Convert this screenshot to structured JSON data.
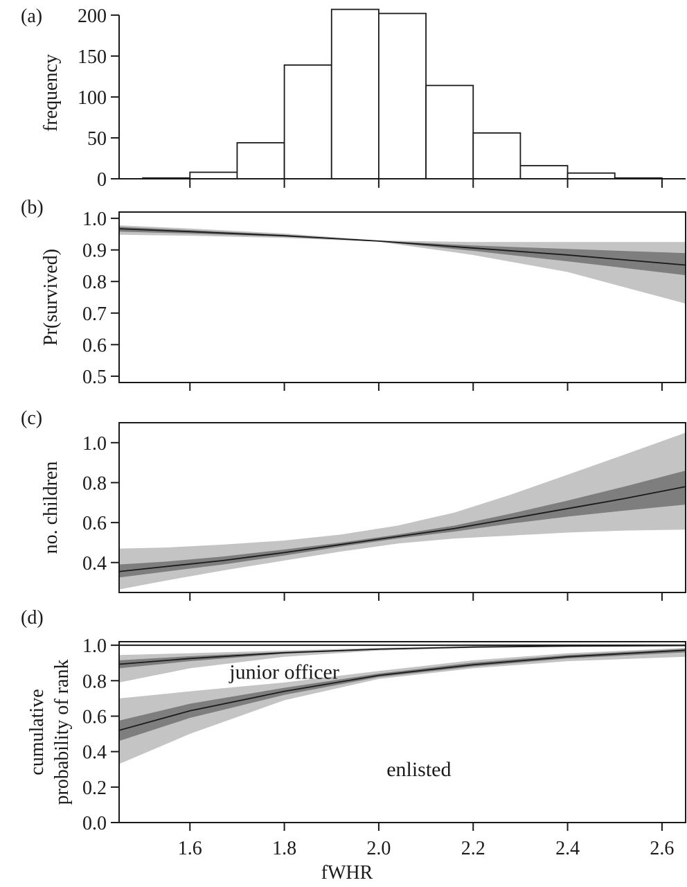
{
  "chart_data": [
    {
      "panel": "(a)",
      "type": "bar",
      "ylabel": "frequency",
      "xlabel": "",
      "xlim": [
        1.45,
        2.65
      ],
      "ylim": [
        0,
        210
      ],
      "yticks": [
        0,
        50,
        100,
        150,
        200
      ],
      "xticks": [
        1.6,
        1.8,
        2.0,
        2.2,
        2.4,
        2.6
      ],
      "bins": [
        {
          "x0": 1.5,
          "x1": 1.6,
          "count": 1
        },
        {
          "x0": 1.6,
          "x1": 1.7,
          "count": 8
        },
        {
          "x0": 1.7,
          "x1": 1.8,
          "count": 44
        },
        {
          "x0": 1.8,
          "x1": 1.9,
          "count": 139
        },
        {
          "x0": 1.9,
          "x1": 2.0,
          "count": 207
        },
        {
          "x0": 2.0,
          "x1": 2.1,
          "count": 202
        },
        {
          "x0": 2.1,
          "x1": 2.2,
          "count": 114
        },
        {
          "x0": 2.2,
          "x1": 2.3,
          "count": 56
        },
        {
          "x0": 2.3,
          "x1": 2.4,
          "count": 16
        },
        {
          "x0": 2.4,
          "x1": 2.5,
          "count": 7
        },
        {
          "x0": 2.5,
          "x1": 2.6,
          "count": 1
        }
      ]
    },
    {
      "panel": "(b)",
      "type": "line",
      "ylabel": "Pr(survived)",
      "xlim": [
        1.45,
        2.65
      ],
      "ylim": [
        0.48,
        1.02
      ],
      "yticks": [
        0.5,
        0.6,
        0.7,
        0.8,
        0.9,
        1.0
      ],
      "xticks": [
        1.6,
        1.8,
        2.0,
        2.2,
        2.4,
        2.6
      ],
      "x": [
        1.45,
        1.6,
        1.8,
        2.0,
        2.2,
        2.4,
        2.65
      ],
      "series": [
        {
          "y": [
            0.967,
            0.958,
            0.945,
            0.928,
            0.906,
            0.884,
            0.852
          ],
          "inner_lower": [
            0.958,
            0.952,
            0.942,
            0.927,
            0.897,
            0.864,
            0.82
          ],
          "inner_upper": [
            0.973,
            0.963,
            0.948,
            0.929,
            0.914,
            0.903,
            0.89
          ],
          "outer_lower": [
            0.948,
            0.945,
            0.938,
            0.926,
            0.884,
            0.83,
            0.73
          ],
          "outer_upper": [
            0.978,
            0.968,
            0.952,
            0.93,
            0.925,
            0.925,
            0.925
          ]
        }
      ]
    },
    {
      "panel": "(c)",
      "type": "line",
      "ylabel": "no. children",
      "xlim": [
        1.45,
        2.65
      ],
      "ylim": [
        0.25,
        1.1
      ],
      "yticks": [
        0.4,
        0.6,
        0.8,
        1.0
      ],
      "xticks": [
        1.6,
        1.8,
        2.0,
        2.2,
        2.4,
        2.6
      ],
      "x": [
        1.45,
        1.55,
        1.67,
        1.8,
        1.92,
        2.04,
        2.16,
        2.28,
        2.4,
        2.52,
        2.65
      ],
      "series": [
        {
          "y": [
            0.355,
            0.38,
            0.41,
            0.45,
            0.49,
            0.53,
            0.57,
            0.62,
            0.67,
            0.72,
            0.78
          ],
          "inner_lower": [
            0.325,
            0.355,
            0.39,
            0.435,
            0.48,
            0.52,
            0.555,
            0.595,
            0.63,
            0.66,
            0.69
          ],
          "inner_upper": [
            0.39,
            0.405,
            0.43,
            0.465,
            0.5,
            0.54,
            0.585,
            0.645,
            0.71,
            0.78,
            0.86
          ],
          "outer_lower": [
            0.265,
            0.31,
            0.36,
            0.41,
            0.455,
            0.495,
            0.52,
            0.535,
            0.55,
            0.56,
            0.565
          ],
          "outer_upper": [
            0.47,
            0.475,
            0.49,
            0.51,
            0.54,
            0.585,
            0.65,
            0.74,
            0.84,
            0.94,
            1.05
          ]
        }
      ]
    },
    {
      "panel": "(d)",
      "type": "line",
      "ylabel": "cumulative probability of rank",
      "ylabel_lines": [
        "cumulative",
        "probability of rank"
      ],
      "xlabel": "fWHR",
      "xlim": [
        1.45,
        2.65
      ],
      "ylim": [
        0,
        1.02
      ],
      "yticks": [
        0.0,
        0.2,
        0.4,
        0.6,
        0.8,
        1.0
      ],
      "xticks": [
        1.6,
        1.8,
        2.0,
        2.2,
        2.4,
        2.6
      ],
      "annotations": [
        {
          "text": "junior officer",
          "x": 1.8,
          "y": 0.85
        },
        {
          "text": "enlisted",
          "x": 2.085,
          "y": 0.3
        }
      ],
      "x": [
        1.45,
        1.6,
        1.8,
        2.0,
        2.2,
        2.4,
        2.65
      ],
      "series": [
        {
          "y": [
            0.893,
            0.925,
            0.958,
            0.978,
            0.99,
            0.995,
            0.998
          ],
          "inner_lower": [
            0.87,
            0.91,
            0.952,
            0.975,
            0.988,
            0.994,
            0.997
          ],
          "inner_upper": [
            0.915,
            0.938,
            0.963,
            0.981,
            0.991,
            0.996,
            0.999
          ],
          "outer_lower": [
            0.79,
            0.87,
            0.935,
            0.97,
            0.985,
            0.992,
            0.996
          ],
          "outer_upper": [
            0.945,
            0.955,
            0.97,
            0.985,
            0.993,
            0.997,
            0.999
          ]
        },
        {
          "y": [
            0.52,
            0.63,
            0.74,
            0.83,
            0.89,
            0.935,
            0.972
          ],
          "inner_lower": [
            0.46,
            0.59,
            0.72,
            0.82,
            0.88,
            0.925,
            0.96
          ],
          "inner_upper": [
            0.575,
            0.67,
            0.76,
            0.84,
            0.902,
            0.945,
            0.98
          ],
          "outer_lower": [
            0.33,
            0.5,
            0.69,
            0.81,
            0.87,
            0.91,
            0.935
          ],
          "outer_upper": [
            0.7,
            0.74,
            0.79,
            0.855,
            0.915,
            0.955,
            0.985
          ]
        }
      ]
    }
  ]
}
